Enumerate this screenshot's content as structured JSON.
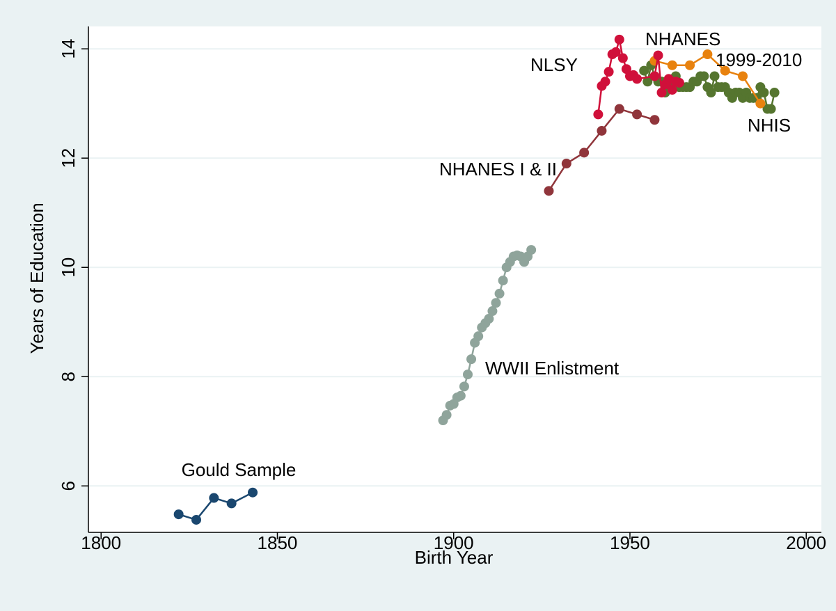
{
  "chart_data": {
    "type": "line",
    "xlabel": "Birth Year",
    "ylabel": "Years of Education",
    "xlim": [
      1796.4,
      2004.3
    ],
    "ylim": [
      5.15,
      14.41
    ],
    "xticks": [
      1800,
      1850,
      1900,
      1950,
      2000
    ],
    "yticks": [
      6,
      8,
      10,
      12,
      14
    ],
    "grid": true,
    "series": [
      {
        "labels": [
          "Gould Sample"
        ],
        "color": "#1a476f",
        "x": [
          1822,
          1827,
          1832,
          1837,
          1843
        ],
        "values": [
          5.48,
          5.38,
          5.78,
          5.68,
          5.88
        ]
      },
      {
        "labels": [
          "WWII Enlistment"
        ],
        "color": "#8fa49b",
        "x": [
          1897,
          1898,
          1899,
          1900,
          1901,
          1902,
          1903,
          1904,
          1905,
          1906,
          1907,
          1908,
          1909,
          1910,
          1911,
          1912,
          1913,
          1914,
          1915,
          1916,
          1917,
          1918,
          1919,
          1920,
          1921,
          1922
        ],
        "values": [
          7.2,
          7.3,
          7.47,
          7.5,
          7.62,
          7.65,
          7.82,
          8.04,
          8.32,
          8.62,
          8.74,
          8.9,
          8.98,
          9.06,
          9.2,
          9.35,
          9.52,
          9.76,
          10.0,
          10.1,
          10.2,
          10.22,
          10.2,
          10.1,
          10.2,
          10.32
        ]
      },
      {
        "labels": [
          "NHANES I & II"
        ],
        "color": "#90353b",
        "x": [
          1927,
          1932,
          1937,
          1942,
          1947,
          1952,
          1957
        ],
        "values": [
          11.4,
          11.9,
          12.1,
          12.5,
          12.9,
          12.8,
          12.7
        ]
      },
      {
        "labels": [
          "NHIS"
        ],
        "color": "#55752f",
        "x": [
          1954,
          1955,
          1956,
          1957,
          1958,
          1959,
          1960,
          1961,
          1962,
          1963,
          1964,
          1965,
          1966,
          1967,
          1968,
          1969,
          1970,
          1971,
          1972,
          1973,
          1974,
          1975,
          1976,
          1977,
          1978,
          1979,
          1980,
          1981,
          1982,
          1983,
          1984,
          1985,
          1986,
          1987,
          1988,
          1989,
          1990,
          1991
        ],
        "values": [
          13.6,
          13.4,
          13.7,
          13.5,
          13.4,
          13.4,
          13.2,
          13.3,
          13.4,
          13.5,
          13.3,
          13.3,
          13.3,
          13.3,
          13.4,
          13.4,
          13.5,
          13.5,
          13.3,
          13.2,
          13.5,
          13.3,
          13.3,
          13.3,
          13.2,
          13.1,
          13.2,
          13.2,
          13.1,
          13.2,
          13.1,
          13.1,
          13.1,
          13.3,
          13.2,
          12.9,
          12.9,
          13.2
        ]
      },
      {
        "labels": [
          "NHANES",
          "1999-2010"
        ],
        "color": "#e8820f",
        "x": [
          1957,
          1962,
          1967,
          1972,
          1977,
          1982,
          1987
        ],
        "values": [
          13.78,
          13.7,
          13.7,
          13.9,
          13.6,
          13.5,
          13.0
        ]
      },
      {
        "labels": [
          "NLSY"
        ],
        "color": "#d0103a",
        "x": [
          1941,
          1942,
          1943,
          1944,
          1945,
          1946,
          1947,
          1948,
          1949,
          1950,
          1951,
          1952,
          1957,
          1958,
          1959,
          1960,
          1961,
          1962,
          1963,
          1964
        ],
        "values": [
          12.8,
          13.32,
          13.4,
          13.58,
          13.9,
          13.94,
          14.17,
          13.83,
          13.63,
          13.5,
          13.52,
          13.45,
          13.5,
          13.88,
          13.2,
          13.35,
          13.45,
          13.25,
          13.4,
          13.38
        ]
      }
    ]
  }
}
